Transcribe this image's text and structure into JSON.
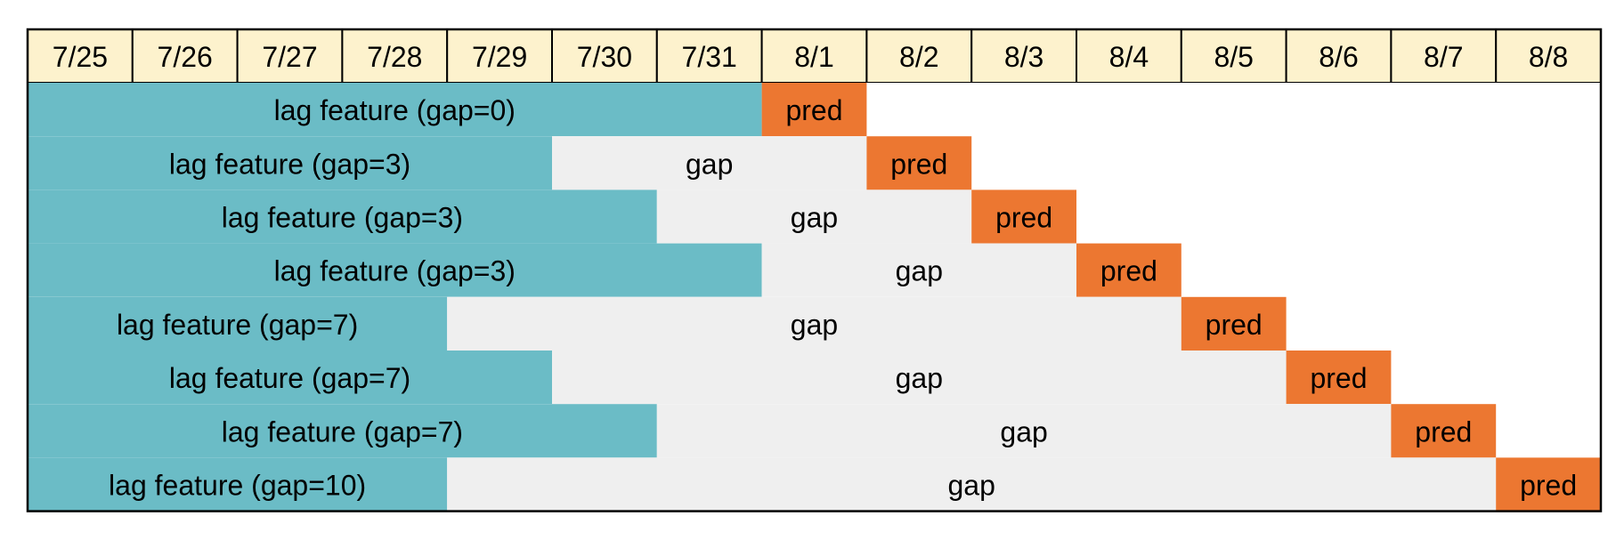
{
  "header": {
    "dates": [
      "7/25",
      "7/26",
      "7/27",
      "7/28",
      "7/29",
      "7/30",
      "7/31",
      "8/1",
      "8/2",
      "8/3",
      "8/4",
      "8/5",
      "8/6",
      "8/7",
      "8/8"
    ]
  },
  "rows": [
    {
      "feature": "lag feature (gap=0)",
      "pred": "pred"
    },
    {
      "feature": "lag feature (gap=3)",
      "gap": "gap",
      "pred": "pred"
    },
    {
      "feature": "lag feature (gap=3)",
      "gap": "gap",
      "pred": "pred"
    },
    {
      "feature": "lag feature (gap=3)",
      "gap": "gap",
      "pred": "pred"
    },
    {
      "feature": "lag feature (gap=7)",
      "gap": "gap",
      "pred": "pred"
    },
    {
      "feature": "lag feature (gap=7)",
      "gap": "gap",
      "pred": "pred"
    },
    {
      "feature": "lag feature (gap=7)",
      "gap": "gap",
      "pred": "pred"
    },
    {
      "feature": "lag feature (gap=10)",
      "gap": "gap",
      "pred": "pred"
    }
  ]
}
